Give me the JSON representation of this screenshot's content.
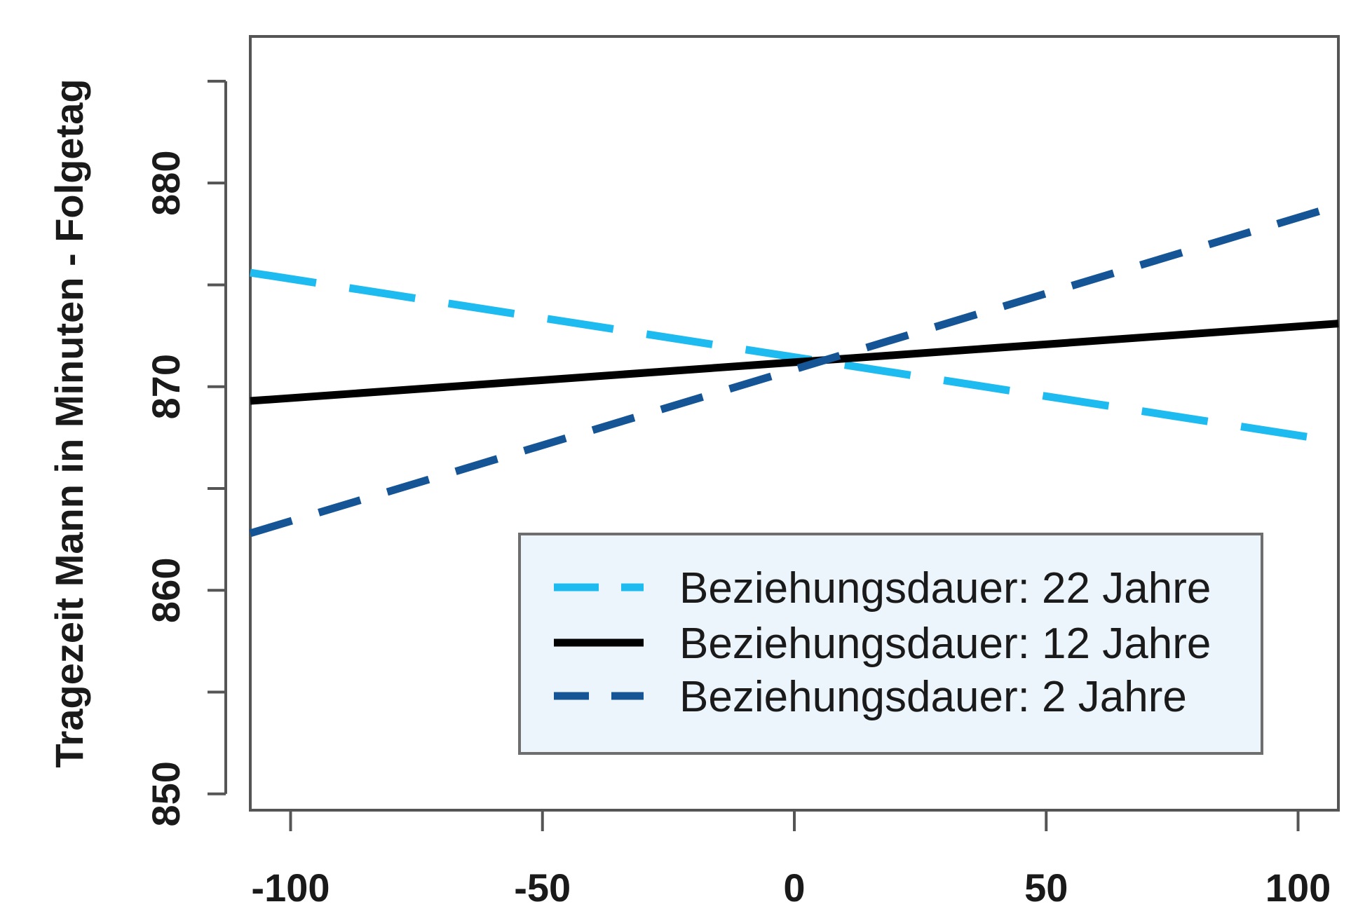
{
  "chart_data": {
    "type": "line",
    "title": "",
    "xlabel": "",
    "ylabel": "Tragezeit Mann in Minuten - Folgetag",
    "xlim": [
      -108,
      108
    ],
    "ylim": [
      849.2,
      887.2
    ],
    "x_ticks": [
      -100,
      -50,
      0,
      50,
      100
    ],
    "x_tick_labels": [
      "-100",
      "-50",
      "0",
      "50",
      "100"
    ],
    "y_ticks": [
      850,
      855,
      860,
      865,
      870,
      875,
      880,
      885
    ],
    "y_tick_labels": [
      "850",
      "",
      "860",
      "",
      "870",
      "",
      "880",
      ""
    ],
    "grid": false,
    "legend_position": "bottom-right",
    "series": [
      {
        "name": "Beziehungsdauer: 22 Jahre",
        "x": [
          -108,
          108
        ],
        "y": [
          875.6,
          867.3
        ],
        "color": "#1ebbf0",
        "dash": "long-dash"
      },
      {
        "name": "Beziehungsdauer: 12 Jahre",
        "x": [
          -108,
          108
        ],
        "y": [
          869.3,
          873.1
        ],
        "color": "#000000",
        "dash": "solid"
      },
      {
        "name": "Beziehungsdauer: 2 Jahre",
        "x": [
          -108,
          108
        ],
        "y": [
          862.8,
          878.9
        ],
        "color": "#155595",
        "dash": "dash"
      }
    ]
  }
}
